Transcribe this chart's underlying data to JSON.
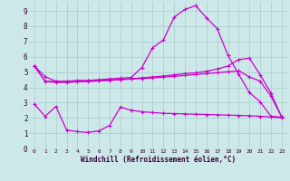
{
  "bg_color": "#cde8e8",
  "line_color": "#cc00cc",
  "grid_color": "#aacccc",
  "xlabel": "Windchill (Refroidissement éolien,°C)",
  "xlabel_color": "#330033",
  "yticks": [
    0,
    1,
    2,
    3,
    4,
    5,
    6,
    7,
    8,
    9
  ],
  "xticks": [
    0,
    1,
    2,
    3,
    4,
    5,
    6,
    7,
    8,
    9,
    10,
    11,
    12,
    13,
    14,
    15,
    16,
    17,
    18,
    19,
    20,
    21,
    22,
    23
  ],
  "xlim": [
    -0.5,
    23.5
  ],
  "ylim": [
    0,
    9.6
  ],
  "line1_x": [
    0,
    1,
    2,
    3,
    4,
    5,
    6,
    7,
    8,
    9,
    10,
    11,
    12,
    13,
    14,
    15,
    16,
    17,
    18,
    19,
    20,
    21,
    22,
    23
  ],
  "line1_y": [
    5.4,
    4.7,
    4.4,
    4.4,
    4.45,
    4.45,
    4.5,
    4.55,
    4.6,
    4.65,
    5.3,
    6.6,
    7.1,
    8.6,
    9.1,
    9.35,
    8.55,
    7.85,
    6.1,
    4.85,
    3.65,
    3.05,
    2.1,
    2.05
  ],
  "line2_x": [
    0,
    1,
    2,
    3,
    4,
    5,
    6,
    7,
    8,
    9,
    10,
    11,
    12,
    13,
    14,
    15,
    16,
    17,
    18,
    19,
    20,
    21,
    22,
    23
  ],
  "line2_y": [
    5.4,
    4.4,
    4.38,
    4.38,
    4.4,
    4.42,
    4.44,
    4.48,
    4.52,
    4.56,
    4.62,
    4.68,
    4.74,
    4.82,
    4.9,
    4.95,
    5.05,
    5.2,
    5.4,
    5.82,
    5.9,
    4.82,
    3.62,
    2.05
  ],
  "line3_x": [
    0,
    1,
    2,
    3,
    4,
    5,
    6,
    7,
    8,
    9,
    10,
    11,
    12,
    13,
    14,
    15,
    16,
    17,
    18,
    19,
    20,
    21,
    22,
    23
  ],
  "line3_y": [
    5.4,
    4.38,
    4.32,
    4.32,
    4.36,
    4.38,
    4.42,
    4.46,
    4.5,
    4.54,
    4.58,
    4.62,
    4.66,
    4.72,
    4.78,
    4.84,
    4.9,
    4.96,
    5.02,
    5.08,
    4.68,
    4.4,
    3.42,
    2.05
  ],
  "line4_x": [
    0,
    1,
    2,
    3,
    4,
    5,
    6,
    7,
    8,
    9,
    10,
    11,
    12,
    13,
    14,
    15,
    16,
    17,
    18,
    19,
    20,
    21,
    22,
    23
  ],
  "line4_y": [
    2.9,
    2.1,
    2.75,
    1.2,
    1.1,
    1.05,
    1.15,
    1.5,
    2.7,
    2.5,
    2.4,
    2.35,
    2.3,
    2.28,
    2.26,
    2.24,
    2.22,
    2.2,
    2.18,
    2.16,
    2.14,
    2.1,
    2.06,
    2.0
  ]
}
